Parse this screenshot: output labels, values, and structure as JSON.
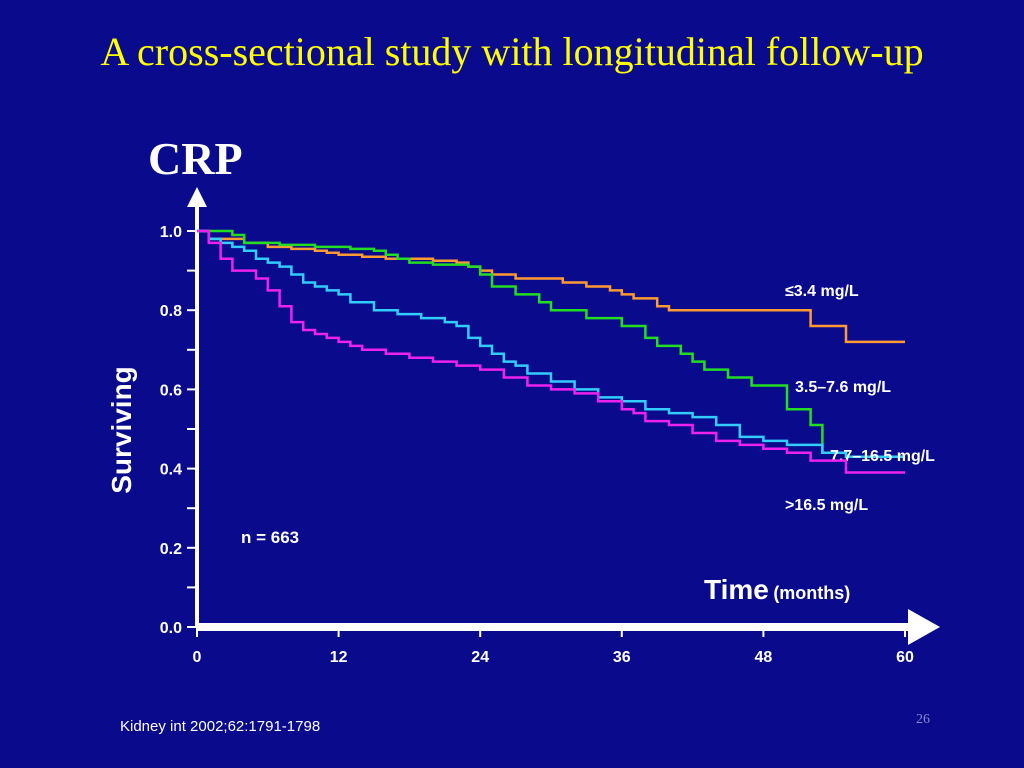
{
  "slide": {
    "title": "A cross-sectional study with longitudinal follow-up",
    "subtitle": "CRP",
    "note": "n = 663",
    "citation": "Kidney int 2002;62:1791-1798",
    "page_number": "26"
  },
  "colors": {
    "background": "#0a0a8c",
    "title": "#ffff00",
    "text": "#ffffff",
    "series": [
      "#ff9933",
      "#22dd22",
      "#33ccff",
      "#ee22ee"
    ]
  },
  "chart_data": {
    "type": "line",
    "step": true,
    "ylabel": "Surviving",
    "xlabel": "Time",
    "xlabel_unit": "(months)",
    "xlim": [
      0,
      60
    ],
    "ylim": [
      0,
      1.0
    ],
    "xticks": [
      "0",
      "12",
      "24",
      "36",
      "48",
      "60"
    ],
    "yticks": [
      "0.0",
      "0.2",
      "0.4",
      "0.6",
      "0.8",
      "1.0"
    ],
    "grid": false,
    "series": [
      {
        "name": "≤3.4 mg/L",
        "color": "#ff9933",
        "x": [
          0,
          1,
          4,
          6,
          8,
          10,
          11,
          12,
          14,
          16,
          18,
          20,
          22,
          23,
          24,
          25,
          27,
          29,
          31,
          33,
          35,
          36,
          37,
          39,
          40,
          42,
          48,
          52,
          55,
          60
        ],
        "y": [
          1.0,
          0.98,
          0.97,
          0.96,
          0.955,
          0.95,
          0.945,
          0.94,
          0.935,
          0.93,
          0.93,
          0.925,
          0.92,
          0.91,
          0.9,
          0.89,
          0.88,
          0.88,
          0.87,
          0.86,
          0.85,
          0.84,
          0.83,
          0.81,
          0.8,
          0.8,
          0.8,
          0.76,
          0.72,
          0.72
        ]
      },
      {
        "name": "3.5–7.6 mg/L",
        "color": "#22dd22",
        "x": [
          0,
          3,
          4,
          7,
          10,
          13,
          15,
          16,
          17,
          18,
          20,
          23,
          24,
          25,
          27,
          29,
          30,
          33,
          36,
          38,
          39,
          41,
          42,
          43,
          45,
          47,
          49,
          50,
          52,
          53,
          55,
          60
        ],
        "y": [
          1.0,
          0.99,
          0.97,
          0.965,
          0.96,
          0.955,
          0.95,
          0.94,
          0.93,
          0.92,
          0.915,
          0.91,
          0.89,
          0.86,
          0.84,
          0.82,
          0.8,
          0.78,
          0.76,
          0.73,
          0.71,
          0.69,
          0.67,
          0.65,
          0.63,
          0.61,
          0.61,
          0.55,
          0.51,
          0.44,
          0.43,
          0.43
        ]
      },
      {
        "name": "7.7–16.5 mg/L",
        "color": "#33ccff",
        "x": [
          0,
          1,
          2,
          3,
          4,
          5,
          6,
          7,
          8,
          9,
          10,
          11,
          12,
          13,
          15,
          17,
          19,
          21,
          22,
          23,
          24,
          25,
          26,
          27,
          28,
          30,
          32,
          34,
          36,
          38,
          40,
          42,
          44,
          46,
          48,
          50,
          52,
          53,
          55,
          60
        ],
        "y": [
          1.0,
          0.98,
          0.97,
          0.96,
          0.95,
          0.93,
          0.92,
          0.91,
          0.89,
          0.87,
          0.86,
          0.85,
          0.84,
          0.82,
          0.8,
          0.79,
          0.78,
          0.77,
          0.76,
          0.73,
          0.71,
          0.69,
          0.67,
          0.66,
          0.64,
          0.62,
          0.6,
          0.58,
          0.57,
          0.55,
          0.54,
          0.53,
          0.51,
          0.48,
          0.47,
          0.46,
          0.46,
          0.44,
          0.43,
          0.43
        ]
      },
      {
        "name": ">16.5 mg/L",
        "color": "#ee22ee",
        "x": [
          0,
          1,
          2,
          3,
          5,
          6,
          7,
          8,
          9,
          10,
          11,
          12,
          13,
          14,
          16,
          18,
          20,
          22,
          24,
          26,
          28,
          30,
          32,
          34,
          36,
          37,
          38,
          40,
          42,
          44,
          46,
          48,
          50,
          52,
          55,
          60
        ],
        "y": [
          1.0,
          0.97,
          0.93,
          0.9,
          0.88,
          0.85,
          0.81,
          0.77,
          0.75,
          0.74,
          0.73,
          0.72,
          0.71,
          0.7,
          0.69,
          0.68,
          0.67,
          0.66,
          0.65,
          0.63,
          0.61,
          0.6,
          0.59,
          0.57,
          0.55,
          0.54,
          0.52,
          0.51,
          0.49,
          0.47,
          0.46,
          0.45,
          0.44,
          0.42,
          0.39,
          0.39
        ]
      }
    ],
    "series_label_positions": [
      "right"
    ]
  }
}
